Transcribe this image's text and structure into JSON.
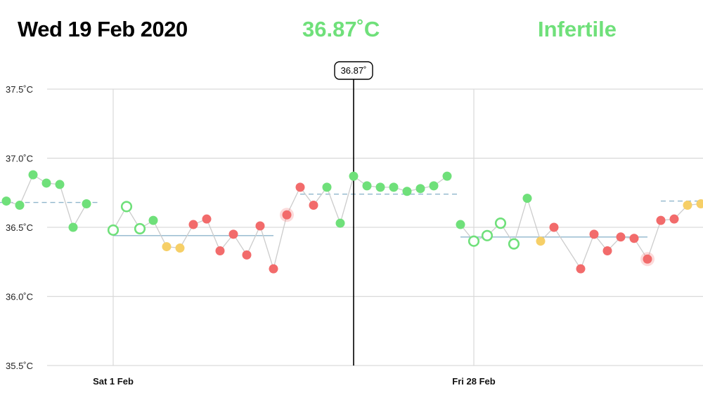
{
  "header": {
    "date": "Wed 19 Feb 2020",
    "temperature": "36.87˚C",
    "status": "Infertile"
  },
  "colors": {
    "green": "#6fe07a",
    "red": "#f26b6b",
    "yellow": "#f6cf67",
    "line": "#cccccc",
    "coverline": "#8fb6cc",
    "grid": "#d9d9d9"
  },
  "chart_data": {
    "type": "scatter",
    "y_ticks": [
      "37.5˚C",
      "37.0˚C",
      "36.5˚C",
      "36.0˚C",
      "35.5˚C"
    ],
    "y_tick_values": [
      37.5,
      37.0,
      36.5,
      36.0,
      35.5
    ],
    "ylim": [
      35.5,
      37.5
    ],
    "x_ticks": [
      "Sat 1 Feb",
      "Fri 28 Feb"
    ],
    "x_tick_days": [
      -18,
      9
    ],
    "grid": true,
    "cursor": {
      "label": "36.87˚",
      "day": 0
    },
    "points": [
      {
        "d": -26,
        "y": 36.69,
        "c": "green",
        "hollow": false
      },
      {
        "d": -25,
        "y": 36.66,
        "c": "green",
        "hollow": false
      },
      {
        "d": -24,
        "y": 36.88,
        "c": "green",
        "hollow": false
      },
      {
        "d": -23,
        "y": 36.82,
        "c": "green",
        "hollow": false
      },
      {
        "d": -22,
        "y": 36.81,
        "c": "green",
        "hollow": false
      },
      {
        "d": -21,
        "y": 36.5,
        "c": "green",
        "hollow": false
      },
      {
        "d": -20,
        "y": 36.67,
        "c": "green",
        "hollow": false
      },
      {
        "d": -18,
        "y": 36.48,
        "c": "green",
        "hollow": true
      },
      {
        "d": -17,
        "y": 36.65,
        "c": "green",
        "hollow": true
      },
      {
        "d": -16,
        "y": 36.49,
        "c": "green",
        "hollow": true
      },
      {
        "d": -15,
        "y": 36.55,
        "c": "green",
        "hollow": false
      },
      {
        "d": -14,
        "y": 36.36,
        "c": "yellow",
        "hollow": false
      },
      {
        "d": -13,
        "y": 36.35,
        "c": "yellow",
        "hollow": false
      },
      {
        "d": -12,
        "y": 36.52,
        "c": "red",
        "hollow": false
      },
      {
        "d": -11,
        "y": 36.56,
        "c": "red",
        "hollow": false
      },
      {
        "d": -10,
        "y": 36.33,
        "c": "red",
        "hollow": false
      },
      {
        "d": -9,
        "y": 36.45,
        "c": "red",
        "hollow": false
      },
      {
        "d": -8,
        "y": 36.3,
        "c": "red",
        "hollow": false
      },
      {
        "d": -7,
        "y": 36.51,
        "c": "red",
        "hollow": false
      },
      {
        "d": -6,
        "y": 36.2,
        "c": "red",
        "hollow": false
      },
      {
        "d": -5,
        "y": 36.59,
        "c": "red",
        "hollow": false,
        "halo": true
      },
      {
        "d": -4,
        "y": 36.79,
        "c": "red",
        "hollow": false
      },
      {
        "d": -3,
        "y": 36.66,
        "c": "red",
        "hollow": false
      },
      {
        "d": -2,
        "y": 36.79,
        "c": "green",
        "hollow": false
      },
      {
        "d": -1,
        "y": 36.53,
        "c": "green",
        "hollow": false
      },
      {
        "d": 0,
        "y": 36.87,
        "c": "green",
        "hollow": false
      },
      {
        "d": 1,
        "y": 36.8,
        "c": "green",
        "hollow": false
      },
      {
        "d": 2,
        "y": 36.79,
        "c": "green",
        "hollow": false
      },
      {
        "d": 3,
        "y": 36.79,
        "c": "green",
        "hollow": false
      },
      {
        "d": 4,
        "y": 36.76,
        "c": "green",
        "hollow": false
      },
      {
        "d": 5,
        "y": 36.78,
        "c": "green",
        "hollow": false
      },
      {
        "d": 6,
        "y": 36.8,
        "c": "green",
        "hollow": false
      },
      {
        "d": 7,
        "y": 36.87,
        "c": "green",
        "hollow": false
      },
      {
        "d": 8,
        "y": 36.52,
        "c": "green",
        "hollow": false
      },
      {
        "d": 9,
        "y": 36.4,
        "c": "green",
        "hollow": true
      },
      {
        "d": 10,
        "y": 36.44,
        "c": "green",
        "hollow": true
      },
      {
        "d": 11,
        "y": 36.53,
        "c": "green",
        "hollow": true
      },
      {
        "d": 12,
        "y": 36.38,
        "c": "green",
        "hollow": true
      },
      {
        "d": 13,
        "y": 36.71,
        "c": "green",
        "hollow": false
      },
      {
        "d": 14,
        "y": 36.4,
        "c": "yellow",
        "hollow": false
      },
      {
        "d": 15,
        "y": 36.5,
        "c": "red",
        "hollow": false
      },
      {
        "d": 17,
        "y": 36.2,
        "c": "red",
        "hollow": false
      },
      {
        "d": 18,
        "y": 36.45,
        "c": "red",
        "hollow": false
      },
      {
        "d": 19,
        "y": 36.33,
        "c": "red",
        "hollow": false
      },
      {
        "d": 20,
        "y": 36.43,
        "c": "red",
        "hollow": false
      },
      {
        "d": 21,
        "y": 36.42,
        "c": "red",
        "hollow": false
      },
      {
        "d": 22,
        "y": 36.27,
        "c": "red",
        "hollow": false,
        "halo": true
      },
      {
        "d": 23,
        "y": 36.55,
        "c": "red",
        "hollow": false
      },
      {
        "d": 24,
        "y": 36.56,
        "c": "red",
        "hollow": false
      },
      {
        "d": 25,
        "y": 36.66,
        "c": "yellow",
        "hollow": false
      },
      {
        "d": 26,
        "y": 36.67,
        "c": "yellow",
        "hollow": false
      }
    ],
    "segments": [
      {
        "from": -26,
        "to": -20
      },
      {
        "from": -18,
        "to": 7
      },
      {
        "from": 8,
        "to": 26
      }
    ],
    "coverlines": [
      {
        "from": -26.5,
        "to": -19,
        "y": 36.68,
        "dashed": true
      },
      {
        "from": -18,
        "to": -6,
        "y": 36.44,
        "dashed": false
      },
      {
        "from": -4,
        "to": 8,
        "y": 36.74,
        "dashed": true
      },
      {
        "from": 8,
        "to": 22,
        "y": 36.43,
        "dashed": false
      },
      {
        "from": 23,
        "to": 27,
        "y": 36.69,
        "dashed": true
      }
    ]
  }
}
